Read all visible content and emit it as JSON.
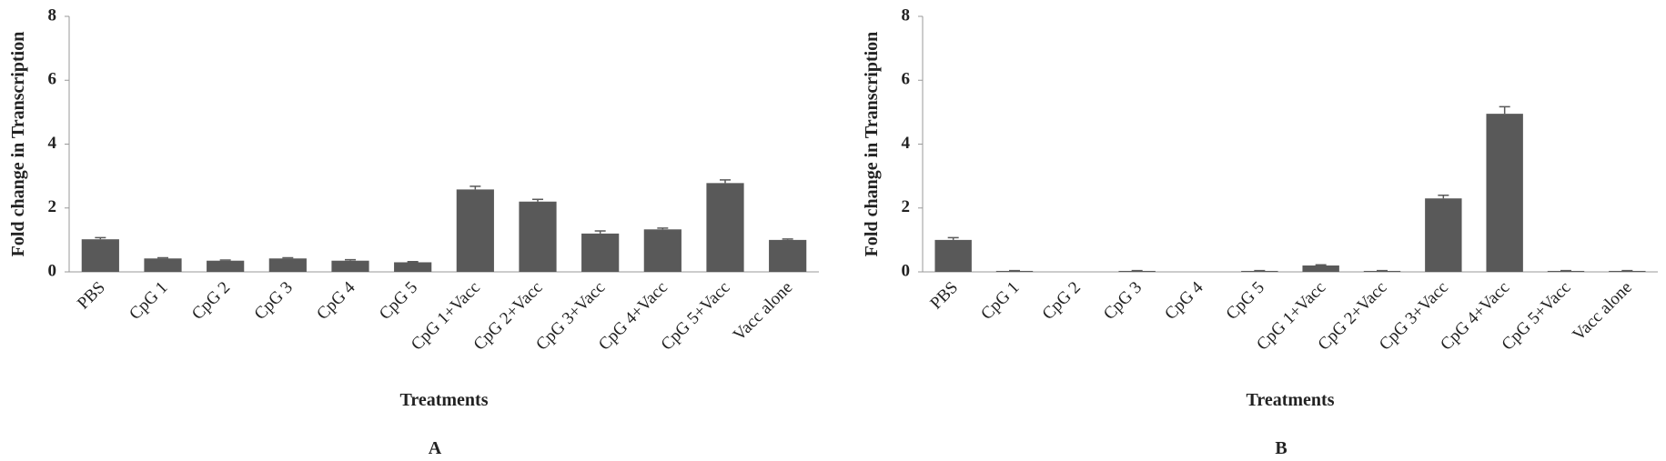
{
  "chart_data": [
    {
      "type": "bar",
      "label": "A",
      "xlabel": "Treatments",
      "ylabel": "Fold change in Transcription",
      "categories": [
        "PBS",
        "CpG 1",
        "CpG 2",
        "CpG 3",
        "CpG 4",
        "CpG 5",
        "CpG 1+Vacc",
        "CpG 2+Vacc",
        "CpG 3+Vacc",
        "CpG 4+Vacc",
        "CpG 5+Vacc",
        "Vacc alone"
      ],
      "values": [
        1.02,
        0.42,
        0.35,
        0.42,
        0.35,
        0.3,
        2.58,
        2.2,
        1.2,
        1.33,
        2.78,
        1.0
      ],
      "errors": [
        0.05,
        0.02,
        0.02,
        0.02,
        0.03,
        0.02,
        0.1,
        0.07,
        0.08,
        0.04,
        0.1,
        0.03
      ],
      "color": "#595959",
      "ylim": [
        0,
        8
      ],
      "yticks": [
        0,
        2,
        4,
        6,
        8
      ],
      "grid": false
    },
    {
      "type": "bar",
      "label": "B",
      "xlabel": "Treatments",
      "ylabel": "Fold change in Transcription",
      "categories": [
        "PBS",
        "CpG 1",
        "CpG 2",
        "CpG 3",
        "CpG 4",
        "CpG 5",
        "CpG 1+Vacc",
        "CpG 2+Vacc",
        "CpG 3+Vacc",
        "CpG 4+Vacc",
        "CpG 5+Vacc",
        "Vacc alone"
      ],
      "values": [
        1.0,
        0.03,
        0,
        0.03,
        0,
        0.03,
        0.2,
        0.03,
        2.3,
        4.95,
        0.03,
        0.03
      ],
      "errors": [
        0.07,
        0.01,
        0,
        0.01,
        0,
        0.01,
        0.02,
        0.01,
        0.1,
        0.22,
        0.01,
        0.01
      ],
      "color": "#595959",
      "ylim": [
        0,
        8
      ],
      "yticks": [
        0,
        2,
        4,
        6,
        8
      ],
      "grid": false
    }
  ]
}
